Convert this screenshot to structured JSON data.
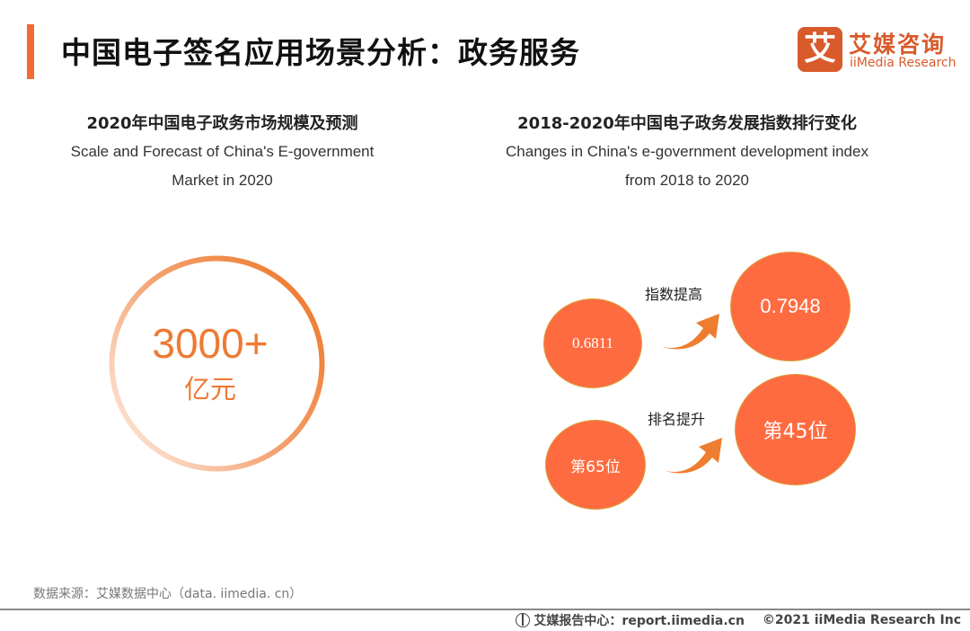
{
  "header": {
    "title": "中国电子签名应用场景分析：政务服务",
    "accent_color": "#f26a33"
  },
  "logo": {
    "glyph": "艾",
    "name_cn": "艾媒咨询",
    "name_en": "iiMedia Research",
    "brand_color": "#d95a2b"
  },
  "left_panel": {
    "title_cn": "2020年中国电子政务市场规模及预测",
    "title_en_line1": "Scale and Forecast of China's E-government",
    "title_en_line2": "Market in 2020",
    "value": "3000+",
    "unit": "亿元",
    "value_color": "#ee7a33"
  },
  "right_panel": {
    "title_cn": "2018-2020年中国电子政务发展指数排行变化",
    "title_en_line1": "Changes in China's e-government development index",
    "title_en_line2": "from 2018 to 2020",
    "index": {
      "label": "指数提高",
      "from": "0.6811",
      "to": "0.7948"
    },
    "rank": {
      "label": "排名提升",
      "from": "第65位",
      "to": "第45位"
    },
    "bubble_color": "#ff6b40",
    "arrow_color": "#ee7d30"
  },
  "footer": {
    "source": "数据来源：艾媒数据中心（data. iimedia. cn）",
    "report_center": "艾媒报告中心：report.iimedia.cn",
    "copyright": "©2021  iiMedia Research  Inc"
  }
}
